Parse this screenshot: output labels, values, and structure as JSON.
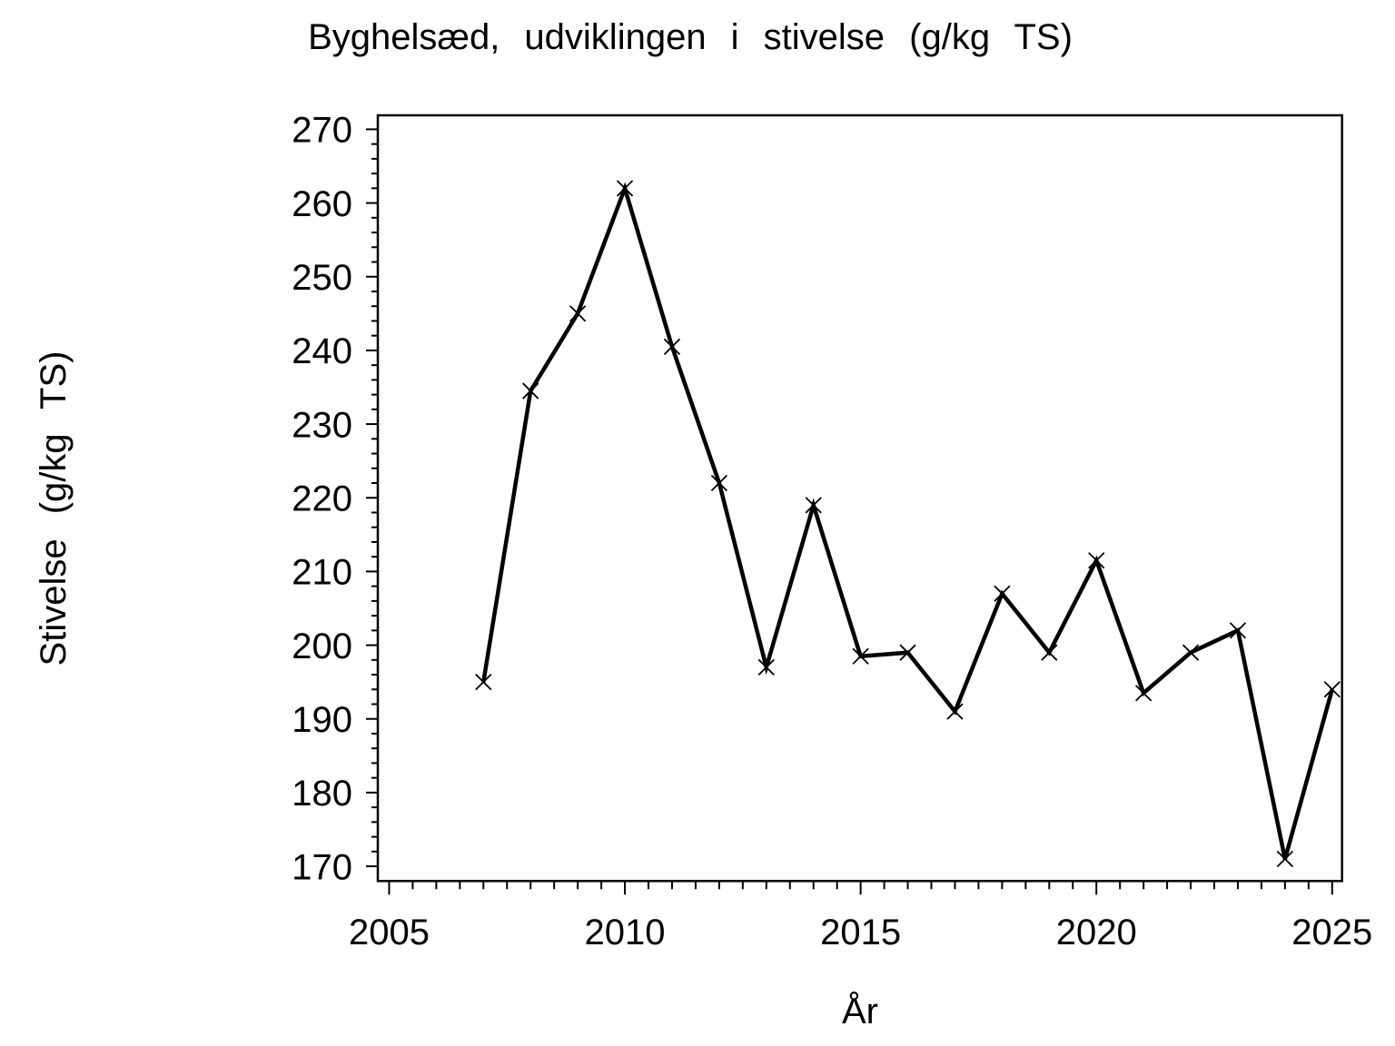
{
  "page": {
    "background": "#ffffff",
    "text_color": "#000000"
  },
  "chart_data": {
    "type": "line",
    "title": "Byghelsæd, udviklingen i stivelse (g/kg TS)",
    "xlabel": "År",
    "ylabel": "Stivelse (g/kg TS)",
    "series": [
      {
        "name": "Stivelse",
        "x": [
          2007,
          2008,
          2009,
          2010,
          2011,
          2012,
          2013,
          2014,
          2015,
          2016,
          2017,
          2018,
          2019,
          2020,
          2021,
          2022,
          2023,
          2024,
          2025
        ],
        "y": [
          195,
          234.5,
          245,
          262,
          240.5,
          222,
          197,
          219,
          198.5,
          199,
          191,
          207,
          199,
          211.5,
          193.5,
          199,
          202,
          171,
          194
        ]
      }
    ],
    "marker": "x",
    "line_color": "#000000",
    "frame_color": "#000000",
    "xlim": [
      2004.76,
      2025.21
    ],
    "ylim": [
      168.0,
      271.9
    ],
    "x_major_ticks": [
      2005,
      2010,
      2015,
      2020,
      2025
    ],
    "x_major_tick_labels": [
      "2005",
      "2010",
      "2015",
      "2020",
      "2025"
    ],
    "x_minor_tick_step": 0.5,
    "x_minor_tick_range": [
      2005,
      2025
    ],
    "y_major_ticks": [
      170,
      180,
      190,
      200,
      210,
      220,
      230,
      240,
      250,
      260,
      270
    ],
    "y_major_tick_labels": [
      "170",
      "180",
      "190",
      "200",
      "210",
      "220",
      "230",
      "240",
      "250",
      "260",
      "270"
    ],
    "y_minor_tick_step": 2,
    "y_minor_tick_range": [
      170,
      270
    ],
    "grid": false,
    "legend": null
  }
}
